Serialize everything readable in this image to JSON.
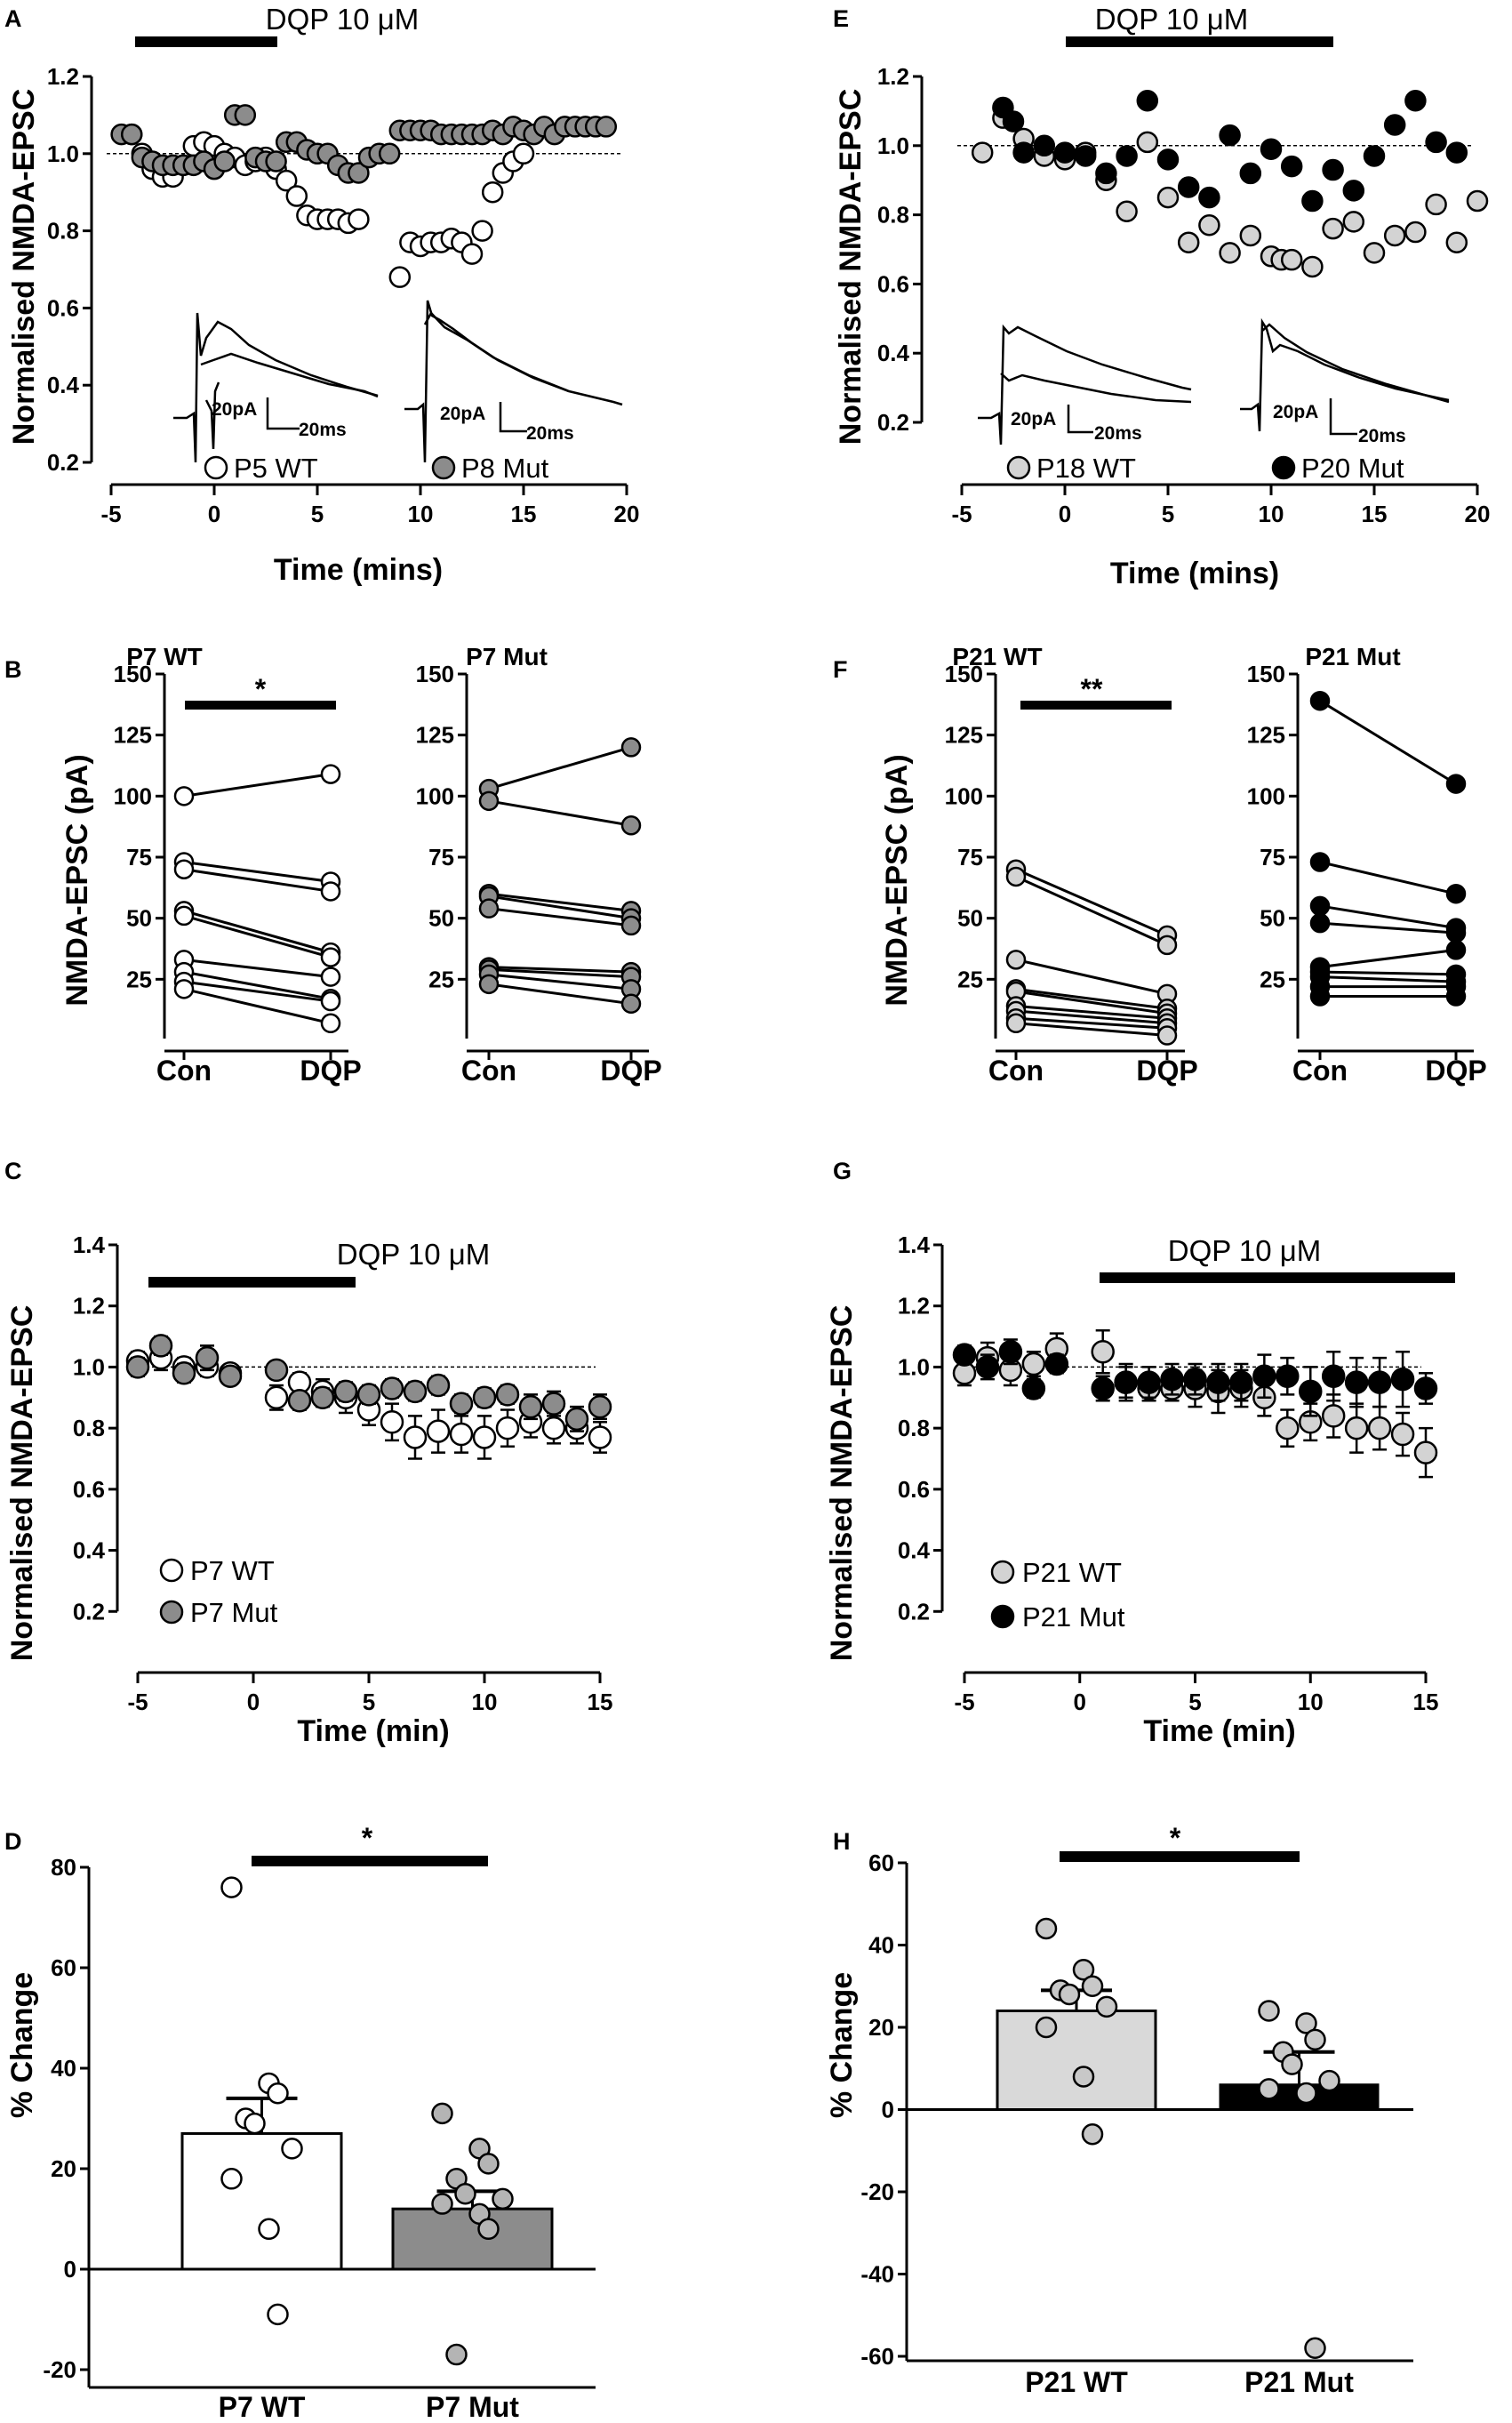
{
  "colors": {
    "wt_p5": "#ffffff",
    "mut_p8": "#8c8c8c",
    "wt_p18": "#d3d3d3",
    "mut_p20": "#000000",
    "wt_p7": "#ffffff",
    "mut_p7": "#8c8c8c",
    "wt_p21": "#d3d3d3",
    "mut_p21": "#000000"
  },
  "panels": {
    "A": {
      "label": "A",
      "drug": "DQP 10 μM",
      "xlabel": "Time (mins)",
      "ylabel": "Normalised NMDA-EPSC",
      "legend": [
        "P5 WT",
        "P8 Mut"
      ],
      "scale_y": "20pA",
      "scale_x": "20ms"
    },
    "B": {
      "label": "B",
      "ylabel": "NMDA-EPSC (pA)",
      "titles": [
        "P7 WT",
        "P7 Mut"
      ],
      "categories": [
        "Con",
        "DQP"
      ],
      "sig": "*"
    },
    "C": {
      "label": "C",
      "drug": "DQP 10 μM",
      "xlabel": "Time (min)",
      "ylabel": "Normalised NMDA-EPSC",
      "legend": [
        "P7 WT",
        "P7 Mut"
      ]
    },
    "D": {
      "label": "D",
      "ylabel": "% Change",
      "sig": "*"
    },
    "E": {
      "label": "E",
      "drug": "DQP 10 μM",
      "xlabel": "Time (mins)",
      "ylabel": "Normalised NMDA-EPSC",
      "legend": [
        "P18 WT",
        "P20 Mut"
      ],
      "scale_y": "20pA",
      "scale_x": "20ms"
    },
    "F": {
      "label": "F",
      "ylabel": "NMDA-EPSC (pA)",
      "titles": [
        "P21 WT",
        "P21 Mut"
      ],
      "categories": [
        "Con",
        "DQP"
      ],
      "sig": "**"
    },
    "G": {
      "label": "G",
      "drug": "DQP 10 μM",
      "xlabel": "Time (min)",
      "ylabel": "Normalised NMDA-EPSC",
      "legend": [
        "P21 WT",
        "P21 Mut"
      ]
    },
    "H": {
      "label": "H",
      "ylabel": "% Change",
      "sig": "*"
    }
  },
  "chart_data": [
    {
      "id": "A",
      "type": "scatter",
      "xlim": [
        -5,
        20
      ],
      "ylim": [
        0.2,
        1.2
      ],
      "xticks": [
        -5,
        0,
        5,
        10,
        15,
        20
      ],
      "yticks": [
        0.2,
        0.4,
        0.6,
        0.8,
        1.0,
        1.2
      ],
      "series": [
        {
          "name": "P5 WT",
          "x": [
            -4,
            -3.5,
            -3,
            -2.5,
            -2,
            -1.5,
            -1,
            -0.5,
            0,
            0.5,
            1,
            1.5,
            2,
            2.5,
            3,
            3.5,
            4,
            4.5,
            5,
            5.5,
            6,
            6.5,
            7,
            9,
            9.5,
            10,
            10.5,
            11,
            11.5,
            12,
            12.5,
            13,
            13.5,
            14,
            14.5,
            15
          ],
          "y": [
            1.05,
            1.0,
            0.96,
            0.94,
            0.94,
            0.97,
            1.02,
            1.03,
            1.02,
            1.0,
            0.99,
            0.97,
            0.98,
            0.99,
            0.96,
            0.93,
            0.89,
            0.84,
            0.83,
            0.83,
            0.83,
            0.82,
            0.83,
            0.68,
            0.77,
            0.76,
            0.77,
            0.77,
            0.78,
            0.77,
            0.74,
            0.8,
            0.9,
            0.95,
            0.98,
            1.0
          ]
        },
        {
          "name": "P8 Mut",
          "x": [
            -4.5,
            -4,
            -3.5,
            -3,
            -2.5,
            -2,
            -1.5,
            -1,
            -0.5,
            0,
            0.5,
            1,
            1.5,
            2,
            2.5,
            3,
            3.5,
            4,
            4.5,
            5,
            5.5,
            6,
            6.5,
            7,
            7.5,
            8,
            8.5,
            9,
            9.5,
            10,
            10.5,
            11,
            11.5,
            12,
            12.5,
            13,
            13.5,
            14,
            14.5,
            15,
            15.5,
            16,
            16.5,
            17,
            17.5,
            18,
            18.5,
            19
          ],
          "y": [
            1.05,
            1.05,
            0.99,
            0.98,
            0.97,
            0.97,
            0.97,
            0.97,
            0.98,
            0.96,
            0.98,
            1.1,
            1.1,
            0.99,
            0.98,
            0.98,
            1.03,
            1.03,
            1.01,
            1.0,
            1.0,
            0.97,
            0.95,
            0.95,
            0.99,
            1.0,
            1.0,
            1.06,
            1.06,
            1.06,
            1.06,
            1.05,
            1.05,
            1.05,
            1.05,
            1.05,
            1.06,
            1.05,
            1.07,
            1.06,
            1.05,
            1.07,
            1.05,
            1.07,
            1.07,
            1.07,
            1.07,
            1.07
          ]
        }
      ]
    },
    {
      "id": "B1",
      "type": "paired-line",
      "title": "P7 WT",
      "categories": [
        "Con",
        "DQP"
      ],
      "ylim": [
        0,
        150
      ],
      "yticks": [
        25,
        50,
        75,
        100,
        125,
        150
      ],
      "pairs": [
        [
          100,
          109
        ],
        [
          73,
          65
        ],
        [
          70,
          61
        ],
        [
          53,
          36
        ],
        [
          51,
          34
        ],
        [
          33,
          26
        ],
        [
          28,
          17
        ],
        [
          24,
          16
        ],
        [
          21,
          7
        ]
      ]
    },
    {
      "id": "B2",
      "type": "paired-line",
      "title": "P7 Mut",
      "categories": [
        "Con",
        "DQP"
      ],
      "ylim": [
        0,
        150
      ],
      "yticks": [
        25,
        50,
        75,
        100,
        125,
        150
      ],
      "pairs": [
        [
          103,
          120
        ],
        [
          98,
          88
        ],
        [
          60,
          53
        ],
        [
          59,
          50
        ],
        [
          54,
          47
        ],
        [
          30,
          28
        ],
        [
          29,
          26
        ],
        [
          27,
          21
        ],
        [
          23,
          15
        ]
      ]
    },
    {
      "id": "C",
      "type": "scatter-errorbar",
      "xlim": [
        -5,
        15
      ],
      "ylim": [
        0,
        1.4
      ],
      "xticks": [
        -5,
        0,
        5,
        10,
        15
      ],
      "yticks": [
        0.2,
        0.4,
        0.6,
        0.8,
        1.0,
        1.2,
        1.4
      ],
      "series": [
        {
          "name": "P7 WT",
          "x": [
            -5,
            -4,
            -3,
            -2,
            -1,
            1,
            2,
            3,
            4,
            5,
            6,
            7,
            8,
            9,
            10,
            11,
            12,
            13,
            14,
            15
          ],
          "y": [
            1.02,
            1.03,
            1.0,
            1.0,
            0.98,
            0.9,
            0.95,
            0.92,
            0.9,
            0.86,
            0.82,
            0.77,
            0.79,
            0.78,
            0.77,
            0.8,
            0.82,
            0.8,
            0.8,
            0.77
          ],
          "err": [
            0.03,
            0.04,
            0.03,
            0.03,
            0.02,
            0.04,
            0.03,
            0.04,
            0.05,
            0.05,
            0.06,
            0.07,
            0.07,
            0.06,
            0.07,
            0.06,
            0.05,
            0.05,
            0.05,
            0.05
          ]
        },
        {
          "name": "P7 Mut",
          "x": [
            -5,
            -4,
            -3,
            -2,
            -1,
            1,
            2,
            3,
            4,
            5,
            6,
            7,
            8,
            9,
            10,
            11,
            12,
            13,
            14,
            15
          ],
          "y": [
            1.0,
            1.07,
            0.98,
            1.03,
            0.97,
            0.99,
            0.89,
            0.9,
            0.92,
            0.91,
            0.93,
            0.92,
            0.94,
            0.88,
            0.9,
            0.91,
            0.87,
            0.88,
            0.83,
            0.87
          ],
          "err": [
            0.03,
            0.03,
            0.03,
            0.04,
            0.02,
            0.02,
            0.03,
            0.03,
            0.03,
            0.03,
            0.03,
            0.03,
            0.03,
            0.03,
            0.03,
            0.03,
            0.04,
            0.04,
            0.04,
            0.04
          ]
        }
      ]
    },
    {
      "id": "D",
      "type": "bar-scatter",
      "categories": [
        "P7 WT",
        "P7 Mut"
      ],
      "ylim": [
        -20,
        80
      ],
      "yticks": [
        -20,
        0,
        20,
        40,
        60,
        80
      ],
      "means": [
        27,
        12
      ],
      "sem": [
        7,
        3.5
      ],
      "points": [
        [
          76,
          37,
          35,
          30,
          29,
          24,
          18,
          8,
          -9
        ],
        [
          31,
          24,
          21,
          18,
          15,
          14,
          13,
          11,
          8,
          -17
        ]
      ]
    },
    {
      "id": "E",
      "type": "scatter",
      "xlim": [
        -5,
        20
      ],
      "ylim": [
        0.2,
        1.2
      ],
      "xticks": [
        -5,
        0,
        5,
        10,
        15,
        20
      ],
      "yticks": [
        0.2,
        0.4,
        0.6,
        0.8,
        1.0,
        1.2
      ],
      "series": [
        {
          "name": "P18 WT",
          "x": [
            -4,
            -3,
            -2,
            -1,
            0,
            1,
            2,
            3,
            4,
            5,
            6,
            7,
            8,
            9,
            10,
            10.5,
            11,
            12,
            13,
            14,
            15,
            16,
            17,
            18,
            19,
            20
          ],
          "y": [
            0.98,
            1.08,
            1.02,
            0.97,
            0.96,
            0.98,
            0.9,
            0.81,
            1.01,
            0.85,
            0.72,
            0.77,
            0.69,
            0.74,
            0.68,
            0.67,
            0.67,
            0.65,
            0.76,
            0.78,
            0.69,
            0.74,
            0.75,
            0.83,
            0.72,
            0.84
          ]
        },
        {
          "name": "P20 Mut",
          "x": [
            -3,
            -2.5,
            -2,
            -1,
            0,
            1,
            2,
            3,
            4,
            5,
            6,
            7,
            8,
            9,
            10,
            11,
            12,
            13,
            14,
            15,
            16,
            17,
            18,
            19
          ],
          "y": [
            1.11,
            1.07,
            0.98,
            1.0,
            0.98,
            0.97,
            0.92,
            0.97,
            1.13,
            0.96,
            0.88,
            0.85,
            1.03,
            0.92,
            0.99,
            0.94,
            0.84,
            0.93,
            0.87,
            0.97,
            1.06,
            1.13,
            1.01,
            0.98
          ]
        }
      ]
    },
    {
      "id": "F1",
      "type": "paired-line",
      "title": "P21 WT",
      "categories": [
        "Con",
        "DQP"
      ],
      "ylim": [
        0,
        150
      ],
      "yticks": [
        25,
        50,
        75,
        100,
        125,
        150
      ],
      "pairs": [
        [
          70,
          43
        ],
        [
          67,
          39
        ],
        [
          33,
          19
        ],
        [
          21,
          13
        ],
        [
          20,
          11
        ],
        [
          14,
          9
        ],
        [
          12,
          7
        ],
        [
          9,
          5
        ],
        [
          7,
          2
        ]
      ]
    },
    {
      "id": "F2",
      "type": "paired-line",
      "title": "P21 Mut",
      "categories": [
        "Con",
        "DQP"
      ],
      "ylim": [
        0,
        150
      ],
      "yticks": [
        25,
        50,
        75,
        100,
        125,
        150
      ],
      "pairs": [
        [
          139,
          105
        ],
        [
          73,
          60
        ],
        [
          55,
          46
        ],
        [
          48,
          44
        ],
        [
          30,
          37
        ],
        [
          28,
          27
        ],
        [
          26,
          24
        ],
        [
          22,
          22
        ],
        [
          18,
          18
        ]
      ]
    },
    {
      "id": "G",
      "type": "scatter-errorbar",
      "xlim": [
        -5,
        15
      ],
      "ylim": [
        0,
        1.4
      ],
      "xticks": [
        -5,
        0,
        5,
        10,
        15
      ],
      "yticks": [
        0.2,
        0.4,
        0.6,
        0.8,
        1.0,
        1.2,
        1.4
      ],
      "series": [
        {
          "name": "P21 WT",
          "x": [
            -5,
            -4,
            -3,
            -2,
            -1,
            1,
            2,
            3,
            4,
            5,
            6,
            7,
            8,
            9,
            10,
            11,
            12,
            13,
            14,
            15
          ],
          "y": [
            0.98,
            1.03,
            0.99,
            1.01,
            1.06,
            1.05,
            0.95,
            0.93,
            0.93,
            0.93,
            0.92,
            0.93,
            0.9,
            0.8,
            0.82,
            0.84,
            0.8,
            0.8,
            0.78,
            0.72
          ],
          "err": [
            0.04,
            0.05,
            0.05,
            0.04,
            0.05,
            0.07,
            0.05,
            0.04,
            0.04,
            0.06,
            0.07,
            0.06,
            0.06,
            0.06,
            0.06,
            0.07,
            0.08,
            0.07,
            0.07,
            0.08
          ]
        },
        {
          "name": "P21 Mut",
          "x": [
            -5,
            -4,
            -3,
            -2,
            -1,
            1,
            2,
            3,
            4,
            5,
            6,
            7,
            8,
            9,
            10,
            11,
            12,
            13,
            14,
            15
          ],
          "y": [
            1.04,
            1.0,
            1.05,
            0.93,
            1.01,
            0.93,
            0.95,
            0.95,
            0.96,
            0.96,
            0.95,
            0.95,
            0.97,
            0.97,
            0.92,
            0.97,
            0.95,
            0.95,
            0.96,
            0.93
          ],
          "err": [
            0.03,
            0.04,
            0.04,
            0.03,
            0.03,
            0.04,
            0.06,
            0.05,
            0.05,
            0.05,
            0.06,
            0.06,
            0.07,
            0.06,
            0.08,
            0.08,
            0.08,
            0.08,
            0.09,
            0.05
          ]
        }
      ]
    },
    {
      "id": "H",
      "type": "bar-scatter",
      "categories": [
        "P21  WT",
        "P21 Mut"
      ],
      "ylim": [
        -60,
        60
      ],
      "yticks": [
        -60,
        -40,
        -20,
        0,
        20,
        40,
        60
      ],
      "means": [
        24,
        6
      ],
      "sem": [
        5,
        8
      ],
      "points": [
        [
          44,
          34,
          30,
          29,
          28,
          25,
          20,
          8,
          -6
        ],
        [
          24,
          21,
          17,
          14,
          11,
          7,
          5,
          4,
          -58
        ]
      ]
    }
  ]
}
